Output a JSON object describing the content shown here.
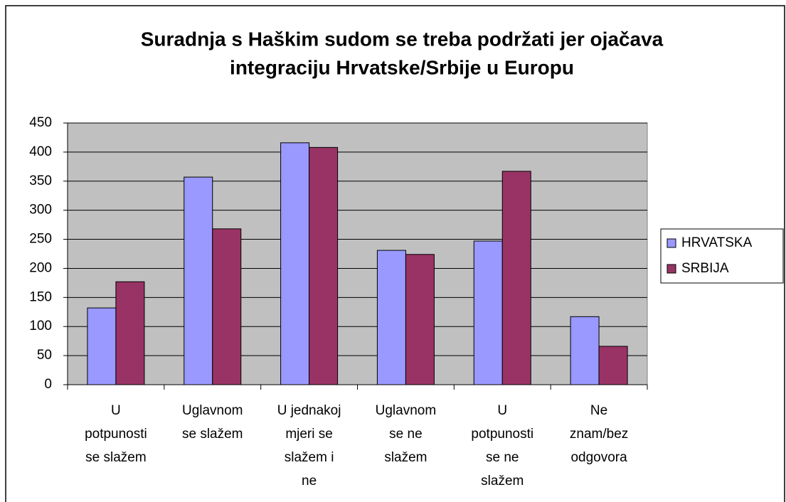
{
  "chart_data": {
    "type": "bar",
    "title": [
      "Suradnja s Haškim sudom se treba podržati jer ojačava",
      "integraciju Hrvatske/Srbije u Europu"
    ],
    "categories": [
      [
        "U",
        "potpunosti",
        "se slažem"
      ],
      [
        "Uglavnom",
        "se slažem"
      ],
      [
        "U jednakoj",
        "mjeri se",
        "slažem i",
        "ne"
      ],
      [
        "Uglavnom",
        "se ne",
        "slažem"
      ],
      [
        "U",
        "potpunosti",
        "se ne",
        "slažem"
      ],
      [
        "Ne",
        "znam/bez",
        "odgovora"
      ]
    ],
    "series": [
      {
        "name": "HRVATSKA",
        "color": "#9999ff",
        "values": [
          132,
          357,
          416,
          231,
          247,
          117
        ]
      },
      {
        "name": "SRBIJA",
        "color": "#993366",
        "values": [
          177,
          268,
          408,
          224,
          367,
          66
        ]
      }
    ],
    "ylim": [
      0,
      450
    ],
    "yticks": [
      0,
      50,
      100,
      150,
      200,
      250,
      300,
      350,
      400,
      450
    ],
    "grid": true,
    "legend": "right"
  }
}
